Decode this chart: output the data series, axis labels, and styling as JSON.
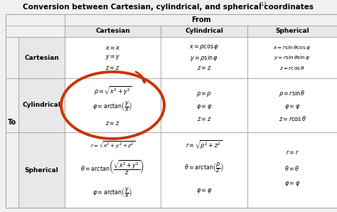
{
  "title": "Conversion between Cartesian, cylindrical, and spherical coordinates",
  "title_sup": "[1]",
  "bg_color": "#f0f0f0",
  "cell_bg": "#ffffff",
  "header_bg": "#e8e8e8",
  "annotation_color": "#cc3300",
  "border_color": "#999999",
  "col_header_labels": [
    "Cartesian",
    "Cylindrical",
    "Spherical"
  ],
  "row_header_labels": [
    "Cartesian",
    "Cylindrical",
    "Spherical"
  ],
  "to_label": "To",
  "from_label": "From"
}
